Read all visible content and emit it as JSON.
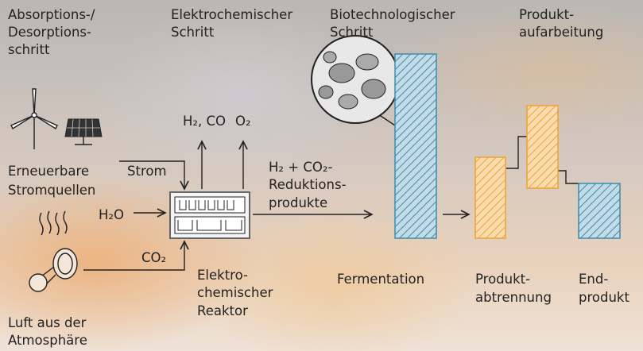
{
  "headers": [
    [
      "Absorptions-/",
      "Desorptions-",
      "schritt"
    ],
    [
      "Elektrochemischer",
      "Schritt"
    ],
    [
      "Biotechnologischer",
      "Schritt"
    ],
    [
      "Produkt-",
      "aufarbeitung"
    ]
  ],
  "reactor": {
    "outputs": [
      "H₂, CO",
      "O₂"
    ],
    "inputs": {
      "power": "Strom",
      "water": "H₂O",
      "carbon": "CO₂"
    },
    "label": [
      "Elektro-",
      "chemischer",
      "Reaktor"
    ]
  },
  "sources": {
    "renewables": [
      "Erneuerbare",
      "Stromquellen"
    ],
    "air": [
      "Luft aus der",
      "Atmosphäre"
    ]
  },
  "products": [
    "H₂ + CO₂-",
    "Reduktions-",
    "produkte"
  ],
  "steps": {
    "fermentation": [
      "Fermentation"
    ],
    "separation": [
      "Produkt-",
      "abtrennung"
    ],
    "end": [
      "End-",
      "produkt"
    ]
  }
}
